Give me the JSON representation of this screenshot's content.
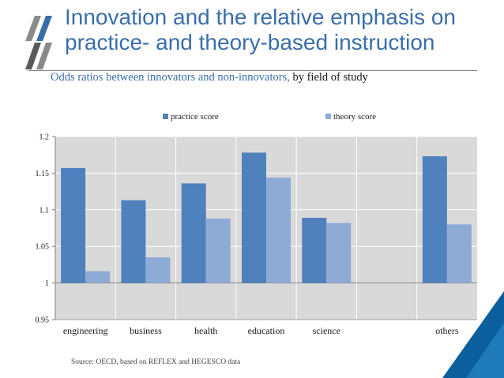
{
  "title": {
    "line1": "Innovation and the relative emphasis on",
    "line2": "practice- and theory-based instruction"
  },
  "subtitle": {
    "part1": "Odds ratios between innovators and non-innovators, ",
    "part2": "by field of study"
  },
  "source": "Source: OECD, based on REFLEX and HEGESCO data",
  "colors": {
    "title": "#3a6ea9",
    "practice": "#4f81bd",
    "theory": "#8eabd6",
    "plot_bg": "#d9d9d9",
    "accent": "#0a5f9c"
  },
  "chart_data": {
    "type": "bar",
    "categories": [
      "engineering",
      "business",
      "health",
      "education",
      "science",
      "",
      "others"
    ],
    "series": [
      {
        "name": "practice score",
        "values": [
          1.157,
          1.113,
          1.136,
          1.178,
          1.089,
          null,
          1.173
        ]
      },
      {
        "name": "theory score",
        "values": [
          1.016,
          1.035,
          1.088,
          1.144,
          1.082,
          null,
          1.08
        ]
      }
    ],
    "ylim": [
      0.95,
      1.2
    ],
    "yticks": [
      "0.95",
      "1",
      "1.05",
      "1.1",
      "1.15",
      "1.2"
    ],
    "baseline": 1,
    "legend_position": "top",
    "xlabel": "",
    "ylabel": ""
  }
}
